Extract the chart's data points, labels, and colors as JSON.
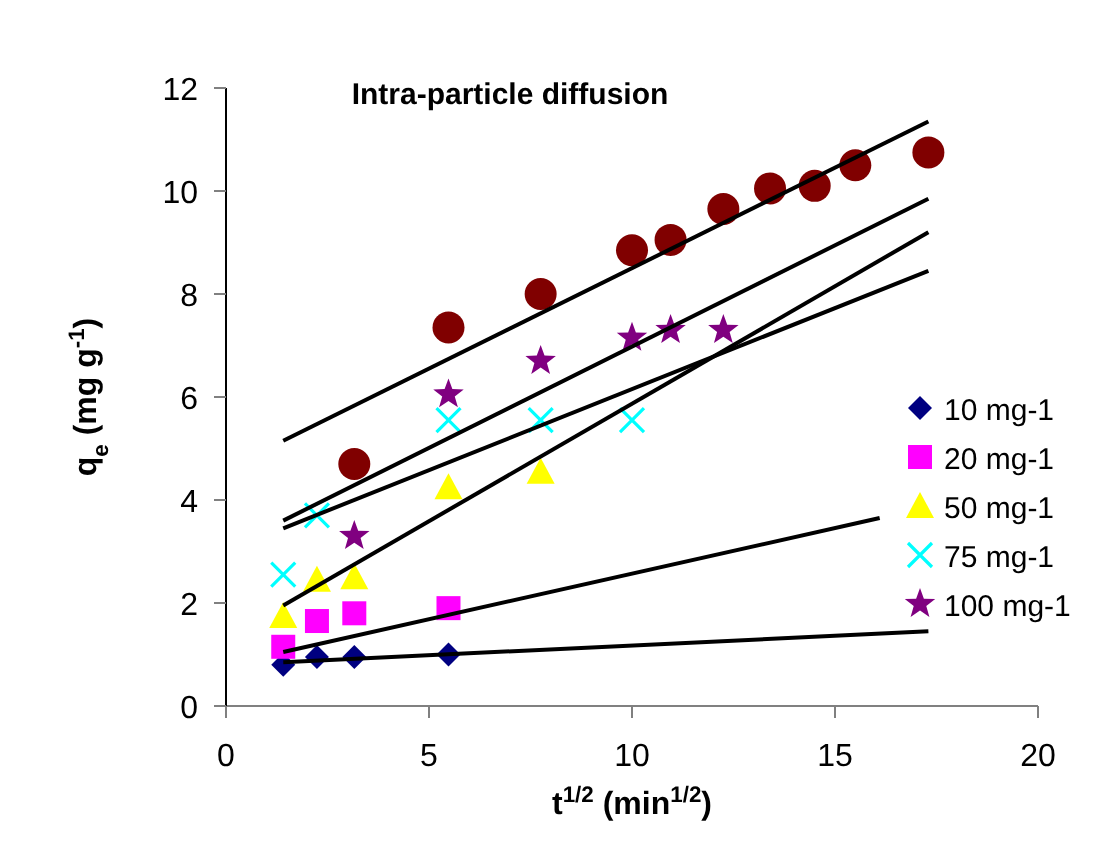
{
  "chart_data": {
    "type": "scatter",
    "title": "Intra-particle diffusion",
    "xlabel": "t$^{1/2}$ (min$^{1/2}$)",
    "ylabel": "q$_{e}$ (mg g$^{-1}$)",
    "xlim": [
      0,
      20
    ],
    "xticks": [
      0,
      5,
      10,
      15,
      20
    ],
    "ylim": [
      0,
      12
    ],
    "yticks": [
      0,
      2,
      4,
      6,
      8,
      10,
      12
    ],
    "grid": false,
    "legend": "right",
    "series": [
      {
        "name": "10 mg-1",
        "color": "#000080",
        "marker": "diamond",
        "x": [
          1.41,
          2.24,
          3.16,
          5.48
        ],
        "values": [
          0.8,
          0.95,
          0.95,
          1.0
        ]
      },
      {
        "name": "20 mg-1",
        "color": "#ff00ff",
        "marker": "square",
        "x": [
          1.41,
          2.24,
          3.16,
          5.48
        ],
        "values": [
          1.15,
          1.65,
          1.8,
          1.9
        ]
      },
      {
        "name": "50 mg-1",
        "color": "#ffff00",
        "marker": "triangle",
        "x": [
          1.41,
          2.24,
          3.16,
          5.48,
          7.75
        ],
        "values": [
          1.75,
          2.45,
          2.5,
          4.25,
          4.55
        ]
      },
      {
        "name": "75 mg-1",
        "color": "#00ffff",
        "marker": "cross",
        "x": [
          1.41,
          2.24,
          5.48,
          7.75,
          10
        ],
        "values": [
          2.55,
          3.7,
          5.55,
          5.55,
          5.55
        ]
      },
      {
        "name": "100 mg-1",
        "color": "#800080",
        "marker": "star",
        "x": [
          3.16,
          5.48,
          7.75,
          10,
          10.95,
          12.25
        ],
        "values": [
          3.3,
          6.05,
          6.7,
          7.15,
          7.3,
          7.3
        ]
      },
      {
        "color": "#800000",
        "marker": "circle",
        "x": [
          3.16,
          5.48,
          7.75,
          10,
          10.95,
          12.25,
          13.4,
          14.5,
          15.5,
          17.3
        ],
        "values": [
          4.7,
          7.35,
          8.0,
          8.85,
          9.05,
          9.65,
          10.05,
          10.1,
          10.5,
          10.75
        ]
      },
      {
        "type": "line",
        "color": "#000000",
        "marker": "none",
        "x": [
          1.41,
          17.3
        ],
        "values": [
          0.85,
          1.45
        ]
      },
      {
        "type": "line",
        "color": "#000000",
        "marker": "none",
        "x": [
          1.41,
          16.1
        ],
        "values": [
          1.05,
          3.65
        ]
      },
      {
        "type": "line",
        "color": "#000000",
        "marker": "none",
        "x": [
          1.41,
          17.3
        ],
        "values": [
          1.95,
          9.2
        ]
      },
      {
        "type": "line",
        "color": "#000000",
        "marker": "none",
        "x": [
          1.41,
          17.3
        ],
        "values": [
          3.45,
          8.45
        ]
      },
      {
        "type": "line",
        "color": "#000000",
        "marker": "none",
        "x": [
          1.41,
          17.3
        ],
        "values": [
          3.6,
          9.85
        ]
      },
      {
        "type": "line",
        "color": "#000000",
        "marker": "none",
        "x": [
          1.41,
          17.3
        ],
        "values": [
          5.15,
          11.35
        ]
      }
    ]
  }
}
